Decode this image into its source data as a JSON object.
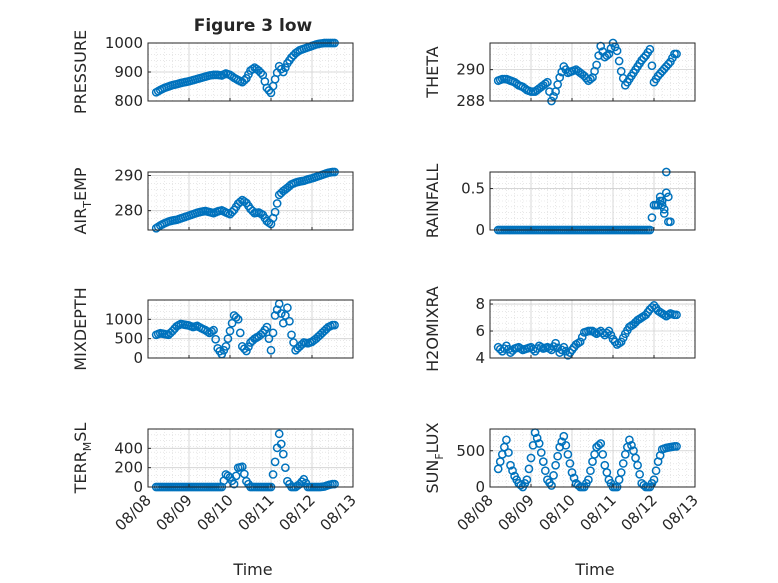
{
  "figure": {
    "title": "Figure 3 low",
    "xlabel": "Time",
    "marker_color": "#0072BD",
    "grid_color": "#d9d9d9",
    "axes_color": "#262626",
    "x_tick_labels": [
      "08/08",
      "08/09",
      "08/10",
      "08/11",
      "08/12",
      "08/13"
    ]
  },
  "chart_data": [
    {
      "type": "scatter",
      "ylabel": "PRESSURE",
      "xlim": [
        0,
        5
      ],
      "ylim": [
        800,
        1000
      ],
      "yticks": [
        800,
        900,
        1000
      ],
      "grid": true,
      "x": [
        0.2,
        0.3,
        0.4,
        0.5,
        0.6,
        0.7,
        0.8,
        0.9,
        1.0,
        1.1,
        1.2,
        1.3,
        1.4,
        1.5,
        1.6,
        1.7,
        1.8,
        1.9,
        2.0,
        2.1,
        2.2,
        2.3,
        2.4,
        2.5,
        2.6,
        2.7,
        2.8,
        2.9,
        3.0,
        3.1,
        3.2,
        3.3,
        3.4,
        3.5,
        3.6,
        3.7,
        3.8,
        3.9,
        4.0,
        4.1,
        4.2,
        4.3,
        4.4,
        4.5
      ],
      "y": [
        830,
        838,
        845,
        850,
        855,
        858,
        862,
        865,
        868,
        872,
        876,
        880,
        884,
        888,
        890,
        890,
        888,
        895,
        890,
        880,
        872,
        865,
        878,
        905,
        915,
        905,
        890,
        845,
        828,
        875,
        920,
        900,
        930,
        950,
        965,
        975,
        980,
        985,
        990,
        995,
        998,
        1000,
        1000,
        1000
      ]
    },
    {
      "type": "scatter",
      "ylabel": "THETA",
      "xlim": [
        0,
        5
      ],
      "ylim": [
        288,
        291.7
      ],
      "yticks": [
        288,
        290
      ],
      "grid": true,
      "x": [
        0.2,
        0.3,
        0.4,
        0.5,
        0.6,
        0.7,
        0.8,
        0.9,
        1.0,
        1.1,
        1.2,
        1.3,
        1.4,
        1.5,
        1.6,
        1.7,
        1.8,
        1.9,
        2.0,
        2.1,
        2.2,
        2.3,
        2.4,
        2.5,
        2.6,
        2.7,
        2.8,
        2.9,
        3.0,
        3.1,
        3.2,
        3.3,
        3.4,
        3.5,
        3.6,
        3.7,
        3.8,
        3.9,
        4.0,
        4.1,
        4.2,
        4.3,
        4.4,
        4.5
      ],
      "y": [
        289.3,
        289.4,
        289.4,
        289.3,
        289.2,
        289.0,
        288.9,
        288.7,
        288.6,
        288.6,
        288.8,
        289.0,
        289.2,
        288.0,
        288.6,
        289.5,
        290.2,
        289.8,
        289.9,
        290.0,
        289.8,
        289.6,
        289.3,
        289.5,
        290.3,
        291.5,
        290.8,
        291.0,
        291.7,
        291.2,
        289.9,
        289.0,
        289.4,
        289.8,
        290.2,
        290.6,
        290.9,
        291.3,
        289.2,
        289.6,
        289.9,
        290.2,
        290.5,
        291.0
      ]
    },
    {
      "type": "scatter",
      "ylabel": "AIR_TEMP",
      "xlim": [
        0,
        5
      ],
      "ylim": [
        274.5,
        291
      ],
      "yticks": [
        280,
        290
      ],
      "grid": true,
      "x": [
        0.2,
        0.3,
        0.4,
        0.5,
        0.6,
        0.7,
        0.8,
        0.9,
        1.0,
        1.1,
        1.2,
        1.3,
        1.4,
        1.5,
        1.6,
        1.7,
        1.8,
        1.9,
        2.0,
        2.1,
        2.2,
        2.3,
        2.4,
        2.5,
        2.6,
        2.7,
        2.8,
        2.9,
        3.0,
        3.1,
        3.2,
        3.3,
        3.4,
        3.5,
        3.6,
        3.7,
        3.8,
        3.9,
        4.0,
        4.1,
        4.2,
        4.3,
        4.4,
        4.5
      ],
      "y": [
        275,
        275.8,
        276.4,
        276.9,
        277.2,
        277.4,
        277.8,
        278.2,
        278.6,
        279.0,
        279.4,
        279.7,
        279.9,
        279.6,
        279.3,
        279.8,
        280.1,
        279.5,
        279.0,
        280.2,
        282.0,
        283.0,
        282.2,
        280.5,
        279.3,
        279.5,
        278.8,
        277.0,
        276.2,
        279.6,
        284.5,
        285.6,
        286.5,
        287.5,
        288.0,
        288.3,
        288.5,
        288.9,
        289.2,
        289.6,
        290.0,
        290.4,
        290.8,
        291.0
      ]
    },
    {
      "type": "scatter",
      "ylabel": "RAINFALL",
      "xlim": [
        0,
        5
      ],
      "ylim": [
        0,
        0.7
      ],
      "yticks": [
        0,
        0.5
      ],
      "grid": true,
      "x": [
        0.2,
        0.3,
        0.4,
        0.5,
        0.6,
        0.7,
        0.8,
        0.9,
        1.0,
        1.1,
        1.2,
        1.3,
        1.4,
        1.5,
        1.6,
        1.7,
        1.8,
        1.9,
        2.0,
        2.1,
        2.2,
        2.3,
        2.4,
        2.5,
        2.6,
        2.7,
        2.8,
        2.9,
        3.0,
        3.1,
        3.2,
        3.3,
        3.4,
        3.5,
        3.6,
        3.7,
        3.8,
        3.9,
        4.0,
        4.1,
        4.15,
        4.2,
        4.25,
        4.3,
        4.35
      ],
      "y": [
        0,
        0,
        0,
        0,
        0,
        0,
        0,
        0,
        0,
        0,
        0,
        0,
        0,
        0,
        0,
        0,
        0,
        0,
        0,
        0,
        0,
        0,
        0,
        0,
        0,
        0,
        0,
        0,
        0,
        0,
        0,
        0,
        0,
        0,
        0,
        0,
        0,
        0,
        0.3,
        0.3,
        0.4,
        0.3,
        0.2,
        0.7,
        0.1
      ]
    },
    {
      "type": "scatter",
      "ylabel": "MIXDEPTH",
      "xlim": [
        0,
        5
      ],
      "ylim": [
        0,
        1500
      ],
      "yticks": [
        0,
        500,
        1000
      ],
      "grid": true,
      "x": [
        0.2,
        0.3,
        0.4,
        0.5,
        0.6,
        0.7,
        0.8,
        0.9,
        1.0,
        1.1,
        1.2,
        1.3,
        1.4,
        1.5,
        1.6,
        1.7,
        1.8,
        1.9,
        2.0,
        2.1,
        2.2,
        2.3,
        2.4,
        2.5,
        2.6,
        2.7,
        2.8,
        2.9,
        3.0,
        3.1,
        3.2,
        3.3,
        3.4,
        3.5,
        3.6,
        3.7,
        3.8,
        3.9,
        4.0,
        4.1,
        4.2,
        4.3,
        4.4,
        4.5
      ],
      "y": [
        600,
        640,
        620,
        600,
        700,
        820,
        880,
        860,
        840,
        800,
        830,
        770,
        720,
        650,
        720,
        250,
        100,
        300,
        700,
        1100,
        1000,
        300,
        180,
        400,
        500,
        560,
        650,
        800,
        200,
        1100,
        1400,
        900,
        1300,
        600,
        200,
        300,
        400,
        380,
        420,
        500,
        600,
        700,
        800,
        850
      ]
    },
    {
      "type": "scatter",
      "ylabel": "H2OMIXRA",
      "xlim": [
        0,
        5
      ],
      "ylim": [
        4,
        8.3
      ],
      "yticks": [
        4,
        6,
        8
      ],
      "grid": true,
      "x": [
        0.2,
        0.3,
        0.4,
        0.5,
        0.6,
        0.7,
        0.8,
        0.9,
        1.0,
        1.1,
        1.2,
        1.3,
        1.4,
        1.5,
        1.6,
        1.7,
        1.8,
        1.9,
        2.0,
        2.1,
        2.2,
        2.3,
        2.4,
        2.5,
        2.6,
        2.7,
        2.8,
        2.9,
        3.0,
        3.1,
        3.2,
        3.3,
        3.4,
        3.5,
        3.6,
        3.7,
        3.8,
        3.9,
        4.0,
        4.1,
        4.2,
        4.3,
        4.4,
        4.5
      ],
      "y": [
        4.8,
        4.5,
        4.9,
        4.4,
        4.7,
        4.8,
        4.6,
        4.7,
        4.8,
        4.5,
        4.9,
        4.7,
        4.8,
        4.6,
        5.1,
        4.4,
        4.8,
        4.2,
        4.6,
        5.0,
        5.2,
        5.9,
        6.0,
        6.0,
        5.8,
        6.0,
        5.7,
        6.0,
        5.4,
        5.0,
        5.2,
        5.8,
        6.3,
        6.5,
        6.8,
        7.0,
        7.2,
        7.6,
        7.9,
        7.5,
        7.3,
        7.1,
        7.3,
        7.2
      ]
    },
    {
      "type": "scatter",
      "ylabel": "TERR_MSL",
      "xlim": [
        0,
        5
      ],
      "ylim": [
        0,
        600
      ],
      "yticks": [
        0,
        200,
        400
      ],
      "grid": true,
      "x": [
        0.2,
        0.3,
        0.4,
        0.5,
        0.6,
        0.7,
        0.8,
        0.9,
        1.0,
        1.1,
        1.2,
        1.3,
        1.4,
        1.5,
        1.6,
        1.7,
        1.8,
        1.9,
        2.0,
        2.1,
        2.2,
        2.3,
        2.4,
        2.5,
        2.6,
        2.7,
        2.8,
        2.9,
        3.0,
        3.1,
        3.2,
        3.3,
        3.4,
        3.5,
        3.6,
        3.7,
        3.8,
        3.9,
        4.0,
        4.1,
        4.2,
        4.3,
        4.4,
        4.5
      ],
      "y": [
        0,
        0,
        0,
        0,
        0,
        0,
        0,
        0,
        0,
        0,
        0,
        0,
        0,
        0,
        0,
        0,
        0,
        130,
        100,
        30,
        200,
        210,
        60,
        0,
        0,
        0,
        0,
        0,
        0,
        260,
        550,
        340,
        60,
        0,
        0,
        30,
        80,
        0,
        0,
        0,
        0,
        5,
        20,
        30
      ]
    },
    {
      "type": "scatter",
      "ylabel": "SUN_FLUX",
      "xlim": [
        0,
        5
      ],
      "ylim": [
        0,
        800
      ],
      "yticks": [
        0,
        500
      ],
      "grid": true,
      "x": [
        0.2,
        0.3,
        0.4,
        0.5,
        0.6,
        0.7,
        0.8,
        0.9,
        1.0,
        1.1,
        1.2,
        1.3,
        1.4,
        1.5,
        1.6,
        1.7,
        1.8,
        1.9,
        2.0,
        2.1,
        2.2,
        2.3,
        2.4,
        2.5,
        2.6,
        2.7,
        2.8,
        2.9,
        3.0,
        3.1,
        3.2,
        3.3,
        3.4,
        3.5,
        3.6,
        3.7,
        3.8,
        3.9,
        4.0,
        4.1,
        4.2,
        4.3,
        4.4,
        4.5
      ],
      "y": [
        250,
        450,
        650,
        300,
        150,
        50,
        0,
        100,
        400,
        750,
        600,
        350,
        100,
        20,
        300,
        550,
        700,
        450,
        200,
        50,
        0,
        0,
        100,
        350,
        550,
        600,
        300,
        100,
        0,
        0,
        200,
        450,
        650,
        500,
        300,
        50,
        0,
        0,
        100,
        350,
        520,
        540,
        550,
        560
      ]
    }
  ]
}
